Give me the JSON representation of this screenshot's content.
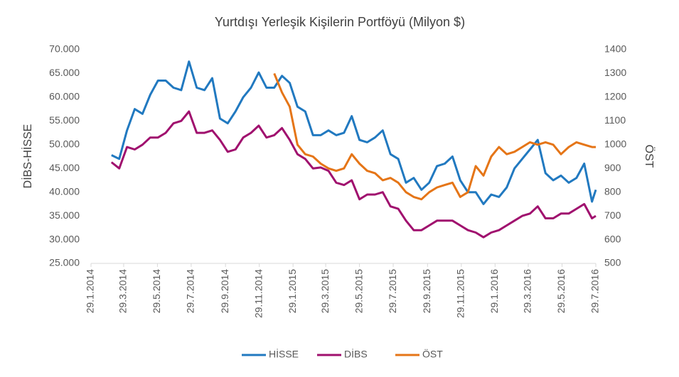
{
  "chart_data": {
    "type": "line",
    "title": "Yurtdışı Yerleşik Kişilerin Portföyü (Milyon $)",
    "y_label": "DİBS-HİSSE",
    "y2_label": "ÖST",
    "x": [
      "7.3.2014",
      "21.3.2014",
      "4.4.2014",
      "18.4.2014",
      "2.5.2014",
      "16.5.2014",
      "30.5.2014",
      "13.6.2014",
      "27.6.2014",
      "11.7.2014",
      "25.7.2014",
      "8.8.2014",
      "22.8.2014",
      "5.9.2014",
      "19.9.2014",
      "3.10.2014",
      "17.10.2014",
      "31.10.2014",
      "14.11.2014",
      "28.11.2014",
      "12.12.2014",
      "26.12.2014",
      "9.1.2015",
      "23.1.2015",
      "6.2.2015",
      "20.2.2015",
      "6.3.2015",
      "20.3.2015",
      "3.4.2015",
      "17.4.2015",
      "1.5.2015",
      "15.5.2015",
      "29.5.2015",
      "12.6.2015",
      "26.6.2015",
      "10.7.2015",
      "24.7.2015",
      "7.8.2015",
      "21.8.2015",
      "4.9.2015",
      "18.9.2015",
      "2.10.2015",
      "16.10.2015",
      "30.10.2015",
      "13.11.2015",
      "27.11.2015",
      "11.12.2015",
      "25.12.2015",
      "8.1.2016",
      "22.1.2016",
      "5.2.2016",
      "19.2.2016",
      "4.3.2016",
      "18.3.2016",
      "1.4.2016",
      "15.4.2016",
      "29.4.2016",
      "13.5.2016",
      "27.5.2016",
      "10.6.2016",
      "24.6.2016",
      "8.7.2016",
      "22.7.2016",
      "29.7.2016"
    ],
    "series": [
      {
        "name": "HİSSE",
        "color": "#2179c0",
        "values": [
          47800,
          47000,
          53000,
          57500,
          56500,
          60500,
          63500,
          63500,
          62000,
          61500,
          67500,
          62000,
          61500,
          64000,
          55500,
          54500,
          57000,
          60000,
          62000,
          65200,
          62000,
          62000,
          64500,
          63000,
          58000,
          57000,
          52000,
          52000,
          53000,
          52000,
          52500,
          56000,
          51000,
          50500,
          51500,
          53000,
          48000,
          47000,
          42000,
          43000,
          40500,
          42000,
          45500,
          46000,
          47500,
          42500,
          40000,
          40000,
          37500,
          39500,
          39000,
          41000,
          45000,
          47000,
          49000,
          51000,
          44000,
          42500,
          43500,
          42000,
          43000,
          46000,
          38000,
          40500
        ]
      },
      {
        "name": "DİBS",
        "color": "#a0106e",
        "values": [
          46300,
          45000,
          49500,
          49000,
          50000,
          51500,
          51500,
          52500,
          54500,
          55000,
          57000,
          52500,
          52500,
          53000,
          51000,
          48500,
          49000,
          51500,
          52500,
          54000,
          51500,
          52000,
          53500,
          51000,
          48000,
          47000,
          45000,
          45200,
          44500,
          42000,
          41500,
          42500,
          38500,
          39500,
          39500,
          40000,
          37000,
          36500,
          34000,
          32000,
          32000,
          33000,
          34000,
          34000,
          34000,
          33000,
          32000,
          31500,
          30500,
          31500,
          32000,
          33000,
          34000,
          35000,
          35500,
          37000,
          34500,
          34500,
          35500,
          35500,
          36500,
          37500,
          34500,
          35000
        ]
      },
      {
        "name": "ÖST",
        "color": "#e57517",
        "axis": "y2",
        "values": [
          null,
          null,
          null,
          null,
          null,
          null,
          null,
          null,
          null,
          null,
          null,
          null,
          null,
          null,
          null,
          null,
          null,
          null,
          null,
          null,
          null,
          1300,
          1220,
          1160,
          1000,
          960,
          950,
          920,
          900,
          890,
          900,
          960,
          920,
          890,
          880,
          850,
          860,
          840,
          800,
          780,
          770,
          800,
          820,
          830,
          840,
          780,
          800,
          910,
          870,
          950,
          990,
          960,
          970,
          990,
          1010,
          1000,
          1010,
          1000,
          960,
          990,
          1010,
          1000,
          990,
          990
        ]
      }
    ],
    "xlim": [
      "29.1.2014",
      "29.7.2016"
    ],
    "xticks": [
      "29.1.2014",
      "29.3.2014",
      "29.5.2014",
      "29.7.2014",
      "29.9.2014",
      "29.11.2014",
      "29.1.2015",
      "29.3.2015",
      "29.5.2015",
      "29.7.2015",
      "29.9.2015",
      "29.11.2015",
      "29.1.2016",
      "29.3.2016",
      "29.5.2016",
      "29.7.2016"
    ],
    "ylim": [
      25000,
      70000
    ],
    "yticks": [
      {
        "value": 25000,
        "label": "25.000"
      },
      {
        "value": 30000,
        "label": "30.000"
      },
      {
        "value": 35000,
        "label": "35.000"
      },
      {
        "value": 40000,
        "label": "40.000"
      },
      {
        "value": 45000,
        "label": "45.000"
      },
      {
        "value": 50000,
        "label": "50.000"
      },
      {
        "value": 55000,
        "label": "55.000"
      },
      {
        "value": 60000,
        "label": "60.000"
      },
      {
        "value": 65000,
        "label": "65.000"
      },
      {
        "value": 70000,
        "label": "70.000"
      }
    ],
    "y2lim": [
      500,
      1400
    ],
    "y2ticks": [
      500,
      600,
      700,
      800,
      900,
      1000,
      1100,
      1200,
      1300,
      1400
    ],
    "legend": "bottom"
  }
}
